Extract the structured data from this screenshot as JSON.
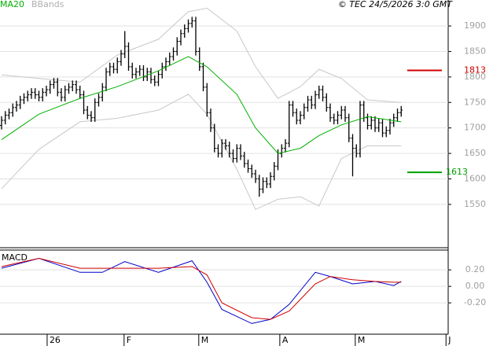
{
  "credit": "© TEC 24/5/2026 3:0 GMT",
  "chart_data": [
    {
      "type": "ohlc",
      "xlim": [
        -0.42,
        119.58
      ],
      "ylim": [
        1465,
        1951
      ],
      "yticks": [
        1550,
        1600,
        1650,
        1700,
        1750,
        1800,
        1850,
        1900
      ],
      "grid": true,
      "bars": {
        "color": "#000000",
        "open": [
          1705,
          1715,
          1725,
          1730,
          1740,
          1745,
          1755,
          1760,
          1765,
          1770,
          1765,
          1760,
          1770,
          1775,
          1785,
          1790,
          1770,
          1760,
          1775,
          1780,
          1785,
          1775,
          1765,
          1735,
          1725,
          1720,
          1750,
          1760,
          1780,
          1810,
          1820,
          1815,
          1830,
          1845,
          1860,
          1820,
          1805,
          1810,
          1815,
          1800,
          1810,
          1795,
          1790,
          1805,
          1820,
          1830,
          1840,
          1850,
          1870,
          1885,
          1895,
          1905,
          1910,
          1850,
          1820,
          1780,
          1730,
          1700,
          1660,
          1650,
          1670,
          1665,
          1650,
          1640,
          1660,
          1645,
          1630,
          1620,
          1610,
          1600,
          1580,
          1595,
          1590,
          1605,
          1625,
          1650,
          1660,
          1670,
          1745,
          1730,
          1715,
          1725,
          1740,
          1755,
          1745,
          1765,
          1775,
          1760,
          1740,
          1720,
          1715,
          1725,
          1735,
          1720,
          1680,
          1660,
          1650,
          1745,
          1720,
          1705,
          1715,
          1700,
          1710,
          1690,
          1695,
          1710,
          1720,
          1730
        ],
        "high": [
          1723,
          1733,
          1738,
          1748,
          1753,
          1763,
          1768,
          1773,
          1778,
          1778,
          1773,
          1778,
          1783,
          1793,
          1798,
          1798,
          1778,
          1783,
          1788,
          1793,
          1793,
          1783,
          1773,
          1743,
          1733,
          1758,
          1768,
          1788,
          1818,
          1828,
          1828,
          1838,
          1853,
          1890,
          1868,
          1828,
          1818,
          1823,
          1823,
          1818,
          1818,
          1803,
          1813,
          1828,
          1838,
          1848,
          1858,
          1878,
          1893,
          1903,
          1913,
          1918,
          1918,
          1858,
          1828,
          1788,
          1738,
          1708,
          1668,
          1678,
          1678,
          1673,
          1658,
          1668,
          1668,
          1653,
          1638,
          1628,
          1618,
          1608,
          1603,
          1603,
          1613,
          1633,
          1658,
          1668,
          1678,
          1753,
          1753,
          1738,
          1733,
          1748,
          1763,
          1763,
          1773,
          1783,
          1783,
          1768,
          1748,
          1728,
          1733,
          1743,
          1743,
          1728,
          1688,
          1668,
          1753,
          1753,
          1728,
          1723,
          1723,
          1718,
          1718,
          1703,
          1718,
          1728,
          1738,
          1743
        ],
        "low": [
          1697,
          1707,
          1717,
          1722,
          1732,
          1737,
          1747,
          1752,
          1757,
          1757,
          1752,
          1752,
          1762,
          1767,
          1777,
          1762,
          1752,
          1752,
          1767,
          1772,
          1767,
          1757,
          1727,
          1717,
          1712,
          1712,
          1742,
          1752,
          1772,
          1802,
          1807,
          1807,
          1822,
          1837,
          1812,
          1797,
          1797,
          1802,
          1792,
          1792,
          1787,
          1782,
          1782,
          1797,
          1812,
          1822,
          1832,
          1842,
          1862,
          1877,
          1887,
          1897,
          1842,
          1812,
          1772,
          1722,
          1692,
          1652,
          1642,
          1642,
          1657,
          1642,
          1632,
          1632,
          1637,
          1622,
          1612,
          1602,
          1592,
          1565,
          1572,
          1582,
          1582,
          1597,
          1617,
          1642,
          1652,
          1662,
          1722,
          1707,
          1707,
          1717,
          1732,
          1737,
          1737,
          1757,
          1752,
          1732,
          1712,
          1707,
          1707,
          1717,
          1712,
          1672,
          1605,
          1642,
          1642,
          1712,
          1697,
          1697,
          1692,
          1692,
          1682,
          1682,
          1687,
          1702,
          1712,
          1722
        ],
        "close": [
          1715,
          1725,
          1730,
          1740,
          1745,
          1755,
          1760,
          1765,
          1770,
          1765,
          1760,
          1770,
          1775,
          1785,
          1790,
          1770,
          1760,
          1775,
          1780,
          1785,
          1775,
          1765,
          1735,
          1725,
          1720,
          1750,
          1760,
          1780,
          1810,
          1820,
          1815,
          1830,
          1845,
          1860,
          1820,
          1805,
          1810,
          1815,
          1800,
          1810,
          1795,
          1790,
          1805,
          1820,
          1830,
          1840,
          1850,
          1870,
          1885,
          1895,
          1905,
          1910,
          1850,
          1820,
          1780,
          1730,
          1700,
          1660,
          1650,
          1670,
          1665,
          1650,
          1640,
          1660,
          1645,
          1630,
          1620,
          1610,
          1600,
          1580,
          1595,
          1590,
          1605,
          1625,
          1650,
          1660,
          1670,
          1745,
          1730,
          1715,
          1725,
          1740,
          1755,
          1745,
          1765,
          1775,
          1760,
          1740,
          1720,
          1715,
          1725,
          1735,
          1720,
          1680,
          1660,
          1650,
          1745,
          1720,
          1705,
          1715,
          1700,
          1710,
          1690,
          1695,
          1710,
          1720,
          1730,
          1735
        ]
      },
      "overlay_x": [
        0,
        10,
        21,
        31,
        42,
        50,
        55,
        63,
        68,
        74,
        80,
        85,
        91,
        98,
        107
      ],
      "series": [
        {
          "name": "MA20",
          "color": "#00b000",
          "values": [
            1677,
            1727,
            1758,
            1781,
            1812,
            1840,
            1820,
            1766,
            1700,
            1650,
            1660,
            1685,
            1706,
            1722,
            1712
          ]
        },
        {
          "name": "BBands",
          "color": "#c8c8c8",
          "upper": [
            1804,
            1797,
            1790,
            1843,
            1874,
            1928,
            1935,
            1890,
            1820,
            1758,
            1781,
            1815,
            1797,
            1755,
            1750
          ],
          "lower": [
            1581,
            1658,
            1712,
            1719,
            1735,
            1766,
            1727,
            1619,
            1540,
            1560,
            1565,
            1547,
            1640,
            1665,
            1665
          ]
        }
      ],
      "levels": [
        {
          "value": 1813,
          "color": "#d00000"
        },
        {
          "value": 1613,
          "color": "#00a000"
        }
      ]
    },
    {
      "type": "line",
      "title": "MACD",
      "xlim": [
        -0.42,
        119.58
      ],
      "ylim": [
        -0.58,
        0.44
      ],
      "yticks": [
        {
          "value": 0.2,
          "label": "0.20"
        },
        {
          "value": 0,
          "label": "0.00"
        },
        {
          "value": -0.2,
          "label": "-0.20"
        }
      ],
      "xticks": [
        {
          "value": 12.2,
          "label": "26"
        },
        {
          "value": 32.8,
          "label": "F"
        },
        {
          "value": 52.8,
          "label": "M"
        },
        {
          "value": 74.5,
          "label": "A"
        },
        {
          "value": 94.7,
          "label": "M"
        },
        {
          "value": 119,
          "label": "J"
        }
      ],
      "x": [
        0,
        10,
        21,
        27,
        33,
        42,
        51,
        55,
        59,
        67,
        72,
        77,
        84,
        88,
        94,
        100,
        105,
        107
      ],
      "series": [
        {
          "color": "#0000c8",
          "values": [
            0.22,
            0.34,
            0.17,
            0.17,
            0.3,
            0.17,
            0.31,
            0.05,
            -0.28,
            -0.45,
            -0.4,
            -0.22,
            0.17,
            0.12,
            0.03,
            0.06,
            0.01,
            0.06
          ]
        },
        {
          "color": "#d00000",
          "values": [
            0.24,
            0.34,
            0.22,
            0.22,
            0.22,
            0.22,
            0.24,
            0.14,
            -0.2,
            -0.38,
            -0.4,
            -0.3,
            0.03,
            0.12,
            0.08,
            0.06,
            0.05,
            0.05
          ]
        }
      ]
    }
  ]
}
